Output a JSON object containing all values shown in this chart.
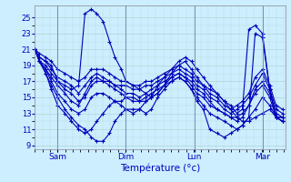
{
  "bg_color": "#cceeff",
  "line_color": "#0000bb",
  "marker": "+",
  "markersize": 3,
  "linewidth": 0.8,
  "xlabel": "Température (°c)",
  "ylim": [
    8.5,
    26.5
  ],
  "yticks": [
    9,
    11,
    13,
    15,
    17,
    19,
    21,
    23,
    25
  ],
  "day_positions": [
    0.25,
    1.0,
    1.75,
    2.5
  ],
  "xtick_labels": [
    "Sam",
    "Dim",
    "Lun",
    "Mar"
  ],
  "xlim": [
    0.0,
    2.75
  ],
  "grid_major_color": "#aacccc",
  "grid_minor_color": "#bbdddd",
  "series": [
    {
      "x": [
        0.0,
        0.05,
        0.12,
        0.18,
        0.25,
        0.33,
        0.4,
        0.48,
        0.55,
        0.62,
        0.68,
        0.75,
        0.82,
        0.88,
        0.95,
        1.0,
        1.08,
        1.15,
        1.22,
        1.28,
        1.35,
        1.42,
        1.5,
        1.58,
        1.65,
        1.72,
        1.78,
        1.85,
        1.92,
        2.0,
        2.08,
        2.15,
        2.22,
        2.28,
        2.35,
        2.42,
        2.5,
        2.58,
        2.65,
        2.72
      ],
      "y": [
        21.0,
        20.0,
        19.5,
        19.0,
        17.0,
        16.5,
        16.0,
        16.5,
        25.5,
        26.0,
        25.5,
        24.5,
        22.0,
        20.0,
        18.5,
        17.0,
        16.5,
        16.0,
        15.5,
        15.0,
        15.5,
        16.5,
        18.0,
        19.0,
        19.5,
        18.5,
        17.5,
        16.5,
        16.0,
        15.5,
        14.5,
        14.0,
        13.0,
        13.5,
        23.5,
        24.0,
        23.0,
        16.0,
        12.5,
        12.5
      ]
    },
    {
      "x": [
        0.0,
        0.05,
        0.12,
        0.18,
        0.25,
        0.33,
        0.4,
        0.48,
        0.55,
        0.62,
        0.68,
        0.75,
        0.82,
        0.88,
        0.95,
        1.0,
        1.08,
        1.15,
        1.22,
        1.28,
        1.35,
        1.42,
        1.5,
        1.58,
        1.65,
        1.72,
        1.78,
        1.85,
        1.92,
        2.0,
        2.08,
        2.15,
        2.22,
        2.28,
        2.35,
        2.42,
        2.5,
        2.58,
        2.65,
        2.72
      ],
      "y": [
        21.0,
        19.5,
        18.5,
        17.5,
        16.5,
        15.5,
        14.5,
        14.0,
        15.5,
        17.0,
        17.5,
        17.0,
        16.5,
        16.0,
        15.5,
        15.0,
        14.5,
        14.5,
        15.0,
        15.5,
        16.0,
        16.5,
        17.5,
        18.0,
        17.5,
        17.0,
        16.0,
        15.5,
        14.5,
        13.5,
        13.0,
        12.5,
        12.0,
        12.5,
        14.0,
        15.5,
        16.5,
        15.0,
        12.5,
        12.0
      ]
    },
    {
      "x": [
        0.0,
        0.05,
        0.12,
        0.18,
        0.25,
        0.33,
        0.4,
        0.48,
        0.55,
        0.62,
        0.68,
        0.75,
        0.82,
        0.88,
        0.95,
        1.0,
        1.08,
        1.15,
        1.22,
        1.28,
        1.35,
        1.42,
        1.5,
        1.58,
        1.65,
        1.72,
        1.78,
        1.85,
        1.92,
        2.0,
        2.08,
        2.15,
        2.22,
        2.28,
        2.35,
        2.42,
        2.5,
        2.58,
        2.65,
        2.72
      ],
      "y": [
        21.0,
        19.5,
        18.0,
        16.5,
        15.0,
        13.5,
        12.5,
        11.5,
        11.0,
        10.0,
        9.5,
        9.5,
        10.5,
        12.0,
        13.0,
        13.5,
        13.5,
        13.5,
        13.0,
        13.5,
        15.0,
        16.0,
        17.0,
        17.5,
        17.0,
        16.0,
        14.5,
        13.5,
        11.0,
        10.5,
        10.0,
        10.5,
        11.0,
        11.5,
        12.5,
        13.5,
        15.0,
        14.0,
        12.5,
        12.0
      ]
    },
    {
      "x": [
        0.0,
        0.05,
        0.12,
        0.18,
        0.25,
        0.33,
        0.4,
        0.48,
        0.55,
        0.62,
        0.68,
        0.75,
        0.82,
        0.88,
        0.95,
        1.0,
        1.08,
        1.15,
        1.22,
        1.28,
        1.35,
        1.42,
        1.5,
        1.58,
        1.65,
        1.72,
        1.78,
        1.85,
        1.92,
        2.0,
        2.08,
        2.15,
        2.22,
        2.28,
        2.35,
        2.42,
        2.5,
        2.58,
        2.65,
        2.72
      ],
      "y": [
        21.0,
        19.5,
        18.0,
        16.0,
        14.0,
        13.0,
        12.0,
        11.0,
        10.5,
        11.0,
        12.0,
        13.0,
        14.0,
        14.5,
        14.0,
        13.5,
        13.0,
        13.5,
        14.5,
        15.0,
        16.5,
        17.5,
        18.5,
        19.5,
        20.0,
        19.5,
        18.5,
        17.5,
        16.5,
        15.5,
        14.5,
        13.5,
        12.5,
        12.0,
        12.0,
        12.5,
        13.0,
        13.5,
        12.5,
        12.5
      ]
    },
    {
      "x": [
        0.0,
        0.05,
        0.12,
        0.18,
        0.25,
        0.33,
        0.4,
        0.48,
        0.55,
        0.62,
        0.68,
        0.75,
        0.82,
        0.88,
        0.95,
        1.0,
        1.08,
        1.15,
        1.22,
        1.28,
        1.35,
        1.42,
        1.5,
        1.58,
        1.65,
        1.72,
        1.78,
        1.85,
        1.92,
        2.0,
        2.08,
        2.15,
        2.22,
        2.28,
        2.35,
        2.42,
        2.5,
        2.58,
        2.65,
        2.72
      ],
      "y": [
        21.0,
        19.5,
        18.5,
        17.0,
        15.5,
        14.5,
        13.5,
        13.0,
        13.5,
        15.0,
        15.5,
        15.5,
        15.0,
        14.5,
        14.5,
        15.0,
        15.0,
        14.5,
        14.5,
        15.0,
        15.5,
        16.5,
        17.0,
        17.5,
        17.0,
        16.0,
        15.0,
        14.0,
        13.0,
        12.5,
        12.0,
        11.5,
        11.0,
        11.5,
        12.5,
        23.0,
        22.5,
        16.0,
        12.5,
        12.0
      ]
    },
    {
      "x": [
        0.0,
        0.05,
        0.12,
        0.18,
        0.25,
        0.33,
        0.4,
        0.48,
        0.55,
        0.62,
        0.68,
        0.75,
        0.82,
        0.88,
        0.95,
        1.0,
        1.08,
        1.15,
        1.22,
        1.28,
        1.35,
        1.42,
        1.5,
        1.58,
        1.65,
        1.72,
        1.78,
        1.85,
        1.92,
        2.0,
        2.08,
        2.15,
        2.22,
        2.28,
        2.35,
        2.42,
        2.5,
        2.58,
        2.65,
        2.72
      ],
      "y": [
        21.0,
        19.5,
        19.0,
        18.0,
        17.0,
        16.0,
        15.5,
        14.5,
        15.0,
        16.5,
        17.0,
        17.0,
        17.0,
        16.5,
        16.0,
        15.5,
        15.5,
        15.0,
        15.5,
        16.0,
        16.5,
        17.0,
        17.5,
        18.0,
        17.5,
        16.5,
        15.5,
        15.0,
        14.0,
        13.5,
        13.0,
        12.5,
        12.5,
        13.0,
        14.0,
        16.0,
        17.0,
        15.5,
        13.0,
        12.5
      ]
    },
    {
      "x": [
        0.0,
        0.05,
        0.12,
        0.18,
        0.25,
        0.33,
        0.4,
        0.48,
        0.55,
        0.62,
        0.68,
        0.75,
        0.82,
        0.88,
        0.95,
        1.0,
        1.08,
        1.15,
        1.22,
        1.28,
        1.35,
        1.42,
        1.5,
        1.58,
        1.65,
        1.72,
        1.78,
        1.85,
        1.92,
        2.0,
        2.08,
        2.15,
        2.22,
        2.28,
        2.35,
        2.42,
        2.5,
        2.58,
        2.65,
        2.72
      ],
      "y": [
        21.0,
        20.0,
        19.5,
        18.5,
        17.5,
        17.0,
        16.5,
        15.5,
        16.5,
        17.5,
        18.0,
        17.5,
        17.0,
        16.5,
        16.5,
        16.5,
        16.0,
        16.0,
        16.5,
        16.5,
        17.0,
        17.5,
        18.0,
        18.5,
        18.0,
        17.5,
        16.5,
        16.0,
        15.0,
        14.5,
        13.5,
        13.0,
        13.5,
        14.0,
        15.0,
        16.5,
        18.0,
        16.0,
        13.5,
        13.0
      ]
    },
    {
      "x": [
        0.0,
        0.05,
        0.12,
        0.18,
        0.25,
        0.33,
        0.4,
        0.48,
        0.55,
        0.62,
        0.68,
        0.75,
        0.82,
        0.88,
        0.95,
        1.0,
        1.08,
        1.15,
        1.22,
        1.28,
        1.35,
        1.42,
        1.5,
        1.58,
        1.65,
        1.72,
        1.78,
        1.85,
        1.92,
        2.0,
        2.08,
        2.15,
        2.22,
        2.28,
        2.35,
        2.42,
        2.5,
        2.58,
        2.65,
        2.72
      ],
      "y": [
        21.0,
        20.5,
        20.0,
        19.5,
        18.5,
        18.0,
        17.5,
        17.0,
        17.5,
        18.5,
        18.5,
        18.5,
        18.0,
        17.5,
        17.0,
        17.0,
        16.5,
        16.5,
        17.0,
        17.0,
        17.5,
        18.0,
        18.5,
        19.0,
        18.5,
        18.0,
        17.0,
        16.5,
        15.5,
        15.0,
        14.0,
        13.5,
        14.0,
        14.5,
        15.5,
        17.5,
        18.5,
        16.5,
        14.0,
        13.5
      ]
    }
  ]
}
